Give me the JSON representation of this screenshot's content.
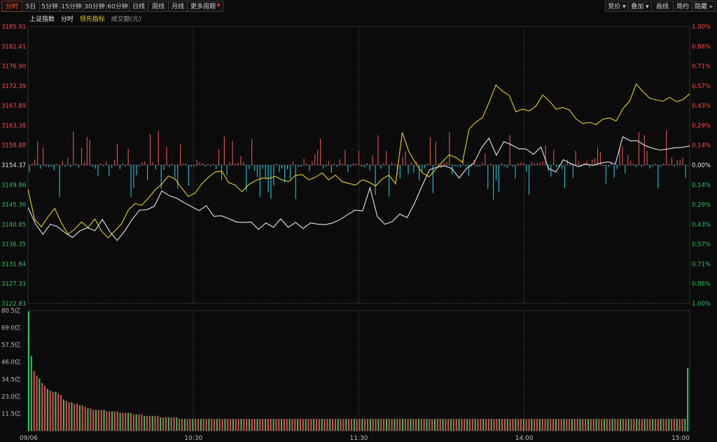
{
  "toolbar": {
    "left": [
      "分时",
      "5日",
      "5分钟",
      "15分钟",
      "30分钟",
      "60分钟",
      "日线",
      "周线",
      "月线",
      "更多周期"
    ],
    "active_index": 0,
    "right": [
      "竞价",
      "叠加",
      "画线",
      "简约",
      "隐藏"
    ]
  },
  "legend": {
    "index_name": "上证指数",
    "timeshare": "分时",
    "leading": "领先指标",
    "volume": "成交额(元)"
  },
  "colors": {
    "up": "#ff4b4b",
    "down": "#2fc25b",
    "neutral": "#e8e8e8",
    "white_line": "#e8e8e8",
    "yellow_line": "#e6d024",
    "bar_up": "#d05050",
    "bar_down": "#1fb8c8",
    "grid": "#2a2a2a"
  },
  "chart_data": [
    {
      "type": "line",
      "name": "price",
      "y_ticks": [
        "3185.91",
        "3181.41",
        "3176.90",
        "3172.39",
        "3167.89",
        "3163.38",
        "3158.88",
        "3154.37",
        "3149.86",
        "3145.36",
        "3140.85",
        "3136.35",
        "3131.84",
        "3127.33",
        "3122.83"
      ],
      "pct_ticks": [
        "1.00%",
        "0.86%",
        "0.71%",
        "0.57%",
        "0.43%",
        "0.29%",
        "0.14%",
        "0.00%",
        "0.14%",
        "0.29%",
        "0.43%",
        "0.57%",
        "0.71%",
        "0.86%",
        "1.00%"
      ],
      "ylim": [
        3122.83,
        3185.91
      ],
      "pre_close": 3154.37,
      "x_labels": [
        "09/06",
        "10:30",
        "11:30",
        "14:00",
        "15:00"
      ],
      "series": [
        {
          "values": [
            3148.8,
            3142.0,
            3140.3,
            3142.6,
            3144.5,
            3141.2,
            3138.6,
            3139.8,
            3141.4,
            3140.2,
            3142.1,
            3139.3,
            3137.8,
            3139.4,
            3141.0,
            3144.1,
            3145.6,
            3145.2,
            3146.8,
            3148.7,
            3150.0,
            3151.9,
            3151.2,
            3149.1,
            3147.2,
            3148.0,
            3150.1,
            3151.6,
            3152.8,
            3153.0,
            3150.4,
            3149.8,
            3148.3,
            3149.9,
            3150.8,
            3151.4,
            3151.3,
            3151.8,
            3151.0,
            3150.6,
            3152.0,
            3152.2,
            3151.0,
            3151.6,
            3152.6,
            3151.0,
            3152.1,
            3150.6,
            3150.2,
            3149.8,
            3151.0,
            3150.5,
            3149.6,
            3151.2,
            3152.1,
            3150.1,
            3161.8,
            3157.4,
            3154.8,
            3152.6,
            3151.7,
            3153.4,
            3155.1,
            3156.7,
            3156.1,
            3155.0,
            3162.6,
            3164.1,
            3165.2,
            3168.7,
            3172.6,
            3171.2,
            3170.2,
            3166.5,
            3167.1,
            3166.7,
            3167.8,
            3170.3,
            3169.0,
            3167.1,
            3167.5,
            3166.9,
            3164.9,
            3163.8,
            3164.1,
            3163.6,
            3164.8,
            3165.1,
            3164.4,
            3167.2,
            3168.9,
            3172.8,
            3171.1,
            3169.6,
            3169.2,
            3168.9,
            3169.8,
            3168.8,
            3169.3,
            3170.6
          ]
        },
        {
          "values": [
            3144.7,
            3141.0,
            3138.6,
            3140.9,
            3140.3,
            3138.9,
            3137.9,
            3139.4,
            3140.1,
            3139.4,
            3142.0,
            3139.2,
            3137.2,
            3139.3,
            3142.0,
            3144.1,
            3144.2,
            3145.0,
            3148.5,
            3147.4,
            3146.8,
            3145.8,
            3144.9,
            3144.0,
            3145.1,
            3142.7,
            3142.8,
            3142.2,
            3141.4,
            3141.3,
            3141.4,
            3139.7,
            3141.2,
            3140.2,
            3142.1,
            3140.2,
            3141.3,
            3139.9,
            3141.2,
            3140.9,
            3140.8,
            3141.2,
            3142.0,
            3143.1,
            3144.1,
            3143.9,
            3149.2,
            3142.6,
            3140.9,
            3141.5,
            3143.2,
            3142.4,
            3145.7,
            3149.6,
            3153.3,
            3153.9,
            3154.2,
            3153.6,
            3151.4,
            3153.6,
            3154.9,
            3158.3,
            3160.5,
            3156.6,
            3159.7,
            3159.0,
            3158.1,
            3158.0,
            3156.8,
            3158.5,
            3153.6,
            3152.8,
            3155.6,
            3154.7,
            3154.0,
            3154.6,
            3154.3,
            3154.8,
            3155.1,
            3154.6,
            3160.8,
            3159.9,
            3159.9,
            3158.8,
            3158.2,
            3157.8,
            3158.0,
            3158.3,
            3158.4,
            3158.7
          ]
        }
      ]
    },
    {
      "type": "bar",
      "name": "turnover",
      "y_ticks": [
        "80.5亿",
        "69.0亿",
        "57.5亿",
        "46.0亿",
        "34.5亿",
        "23.0亿",
        "11.5亿"
      ],
      "ylim": [
        0,
        80.5
      ],
      "values": [
        80,
        50,
        40,
        37,
        35,
        32,
        30,
        28,
        27,
        26,
        26,
        25,
        24,
        21,
        20,
        19,
        19,
        18,
        18,
        17,
        17,
        16,
        15,
        15,
        14,
        14,
        14,
        14,
        14,
        13,
        13,
        13,
        13,
        13,
        12,
        12,
        12,
        12,
        12,
        11,
        11,
        11,
        11,
        10,
        10,
        10,
        10,
        10,
        10,
        9,
        9,
        9,
        9,
        9,
        9,
        9,
        8,
        8,
        8,
        8,
        8,
        8,
        8,
        8,
        8,
        8,
        8,
        8,
        8,
        8,
        8,
        8,
        8,
        8,
        8,
        8,
        8,
        8,
        8,
        8,
        8,
        8,
        8,
        8,
        8,
        8,
        8,
        8,
        8,
        8,
        8,
        8,
        8,
        8,
        8,
        8,
        8,
        8,
        8,
        8,
        8,
        8,
        8,
        8,
        8,
        8,
        8,
        8,
        8,
        8,
        8,
        8,
        8,
        8,
        8,
        8,
        8,
        8,
        8,
        8,
        8,
        8,
        8,
        8,
        8,
        8,
        8,
        8,
        8,
        8,
        8,
        8,
        8,
        8,
        8,
        8,
        8,
        8,
        8,
        8,
        8,
        8,
        8,
        8,
        8,
        8,
        8,
        8,
        8,
        8,
        8,
        8,
        8,
        8,
        8,
        8,
        8,
        8,
        8,
        8,
        8,
        8,
        8,
        8,
        8,
        8,
        8,
        8,
        8,
        8,
        8,
        8,
        8,
        8,
        8,
        8,
        8,
        8,
        8,
        8,
        8,
        8,
        8,
        8,
        8,
        8,
        8,
        8,
        8,
        8,
        8,
        8,
        8,
        8,
        8,
        8,
        8,
        8,
        8,
        8,
        8,
        8,
        8,
        8,
        8,
        8,
        8,
        8,
        8,
        8,
        8,
        8,
        8,
        8,
        8,
        8,
        8,
        8,
        8,
        8,
        8,
        8,
        8,
        8,
        8,
        8,
        8,
        8,
        8,
        8,
        8,
        8,
        8,
        8,
        8,
        8,
        8,
        8,
        8,
        8,
        8,
        8,
        8,
        8,
        8,
        42
      ]
    }
  ]
}
